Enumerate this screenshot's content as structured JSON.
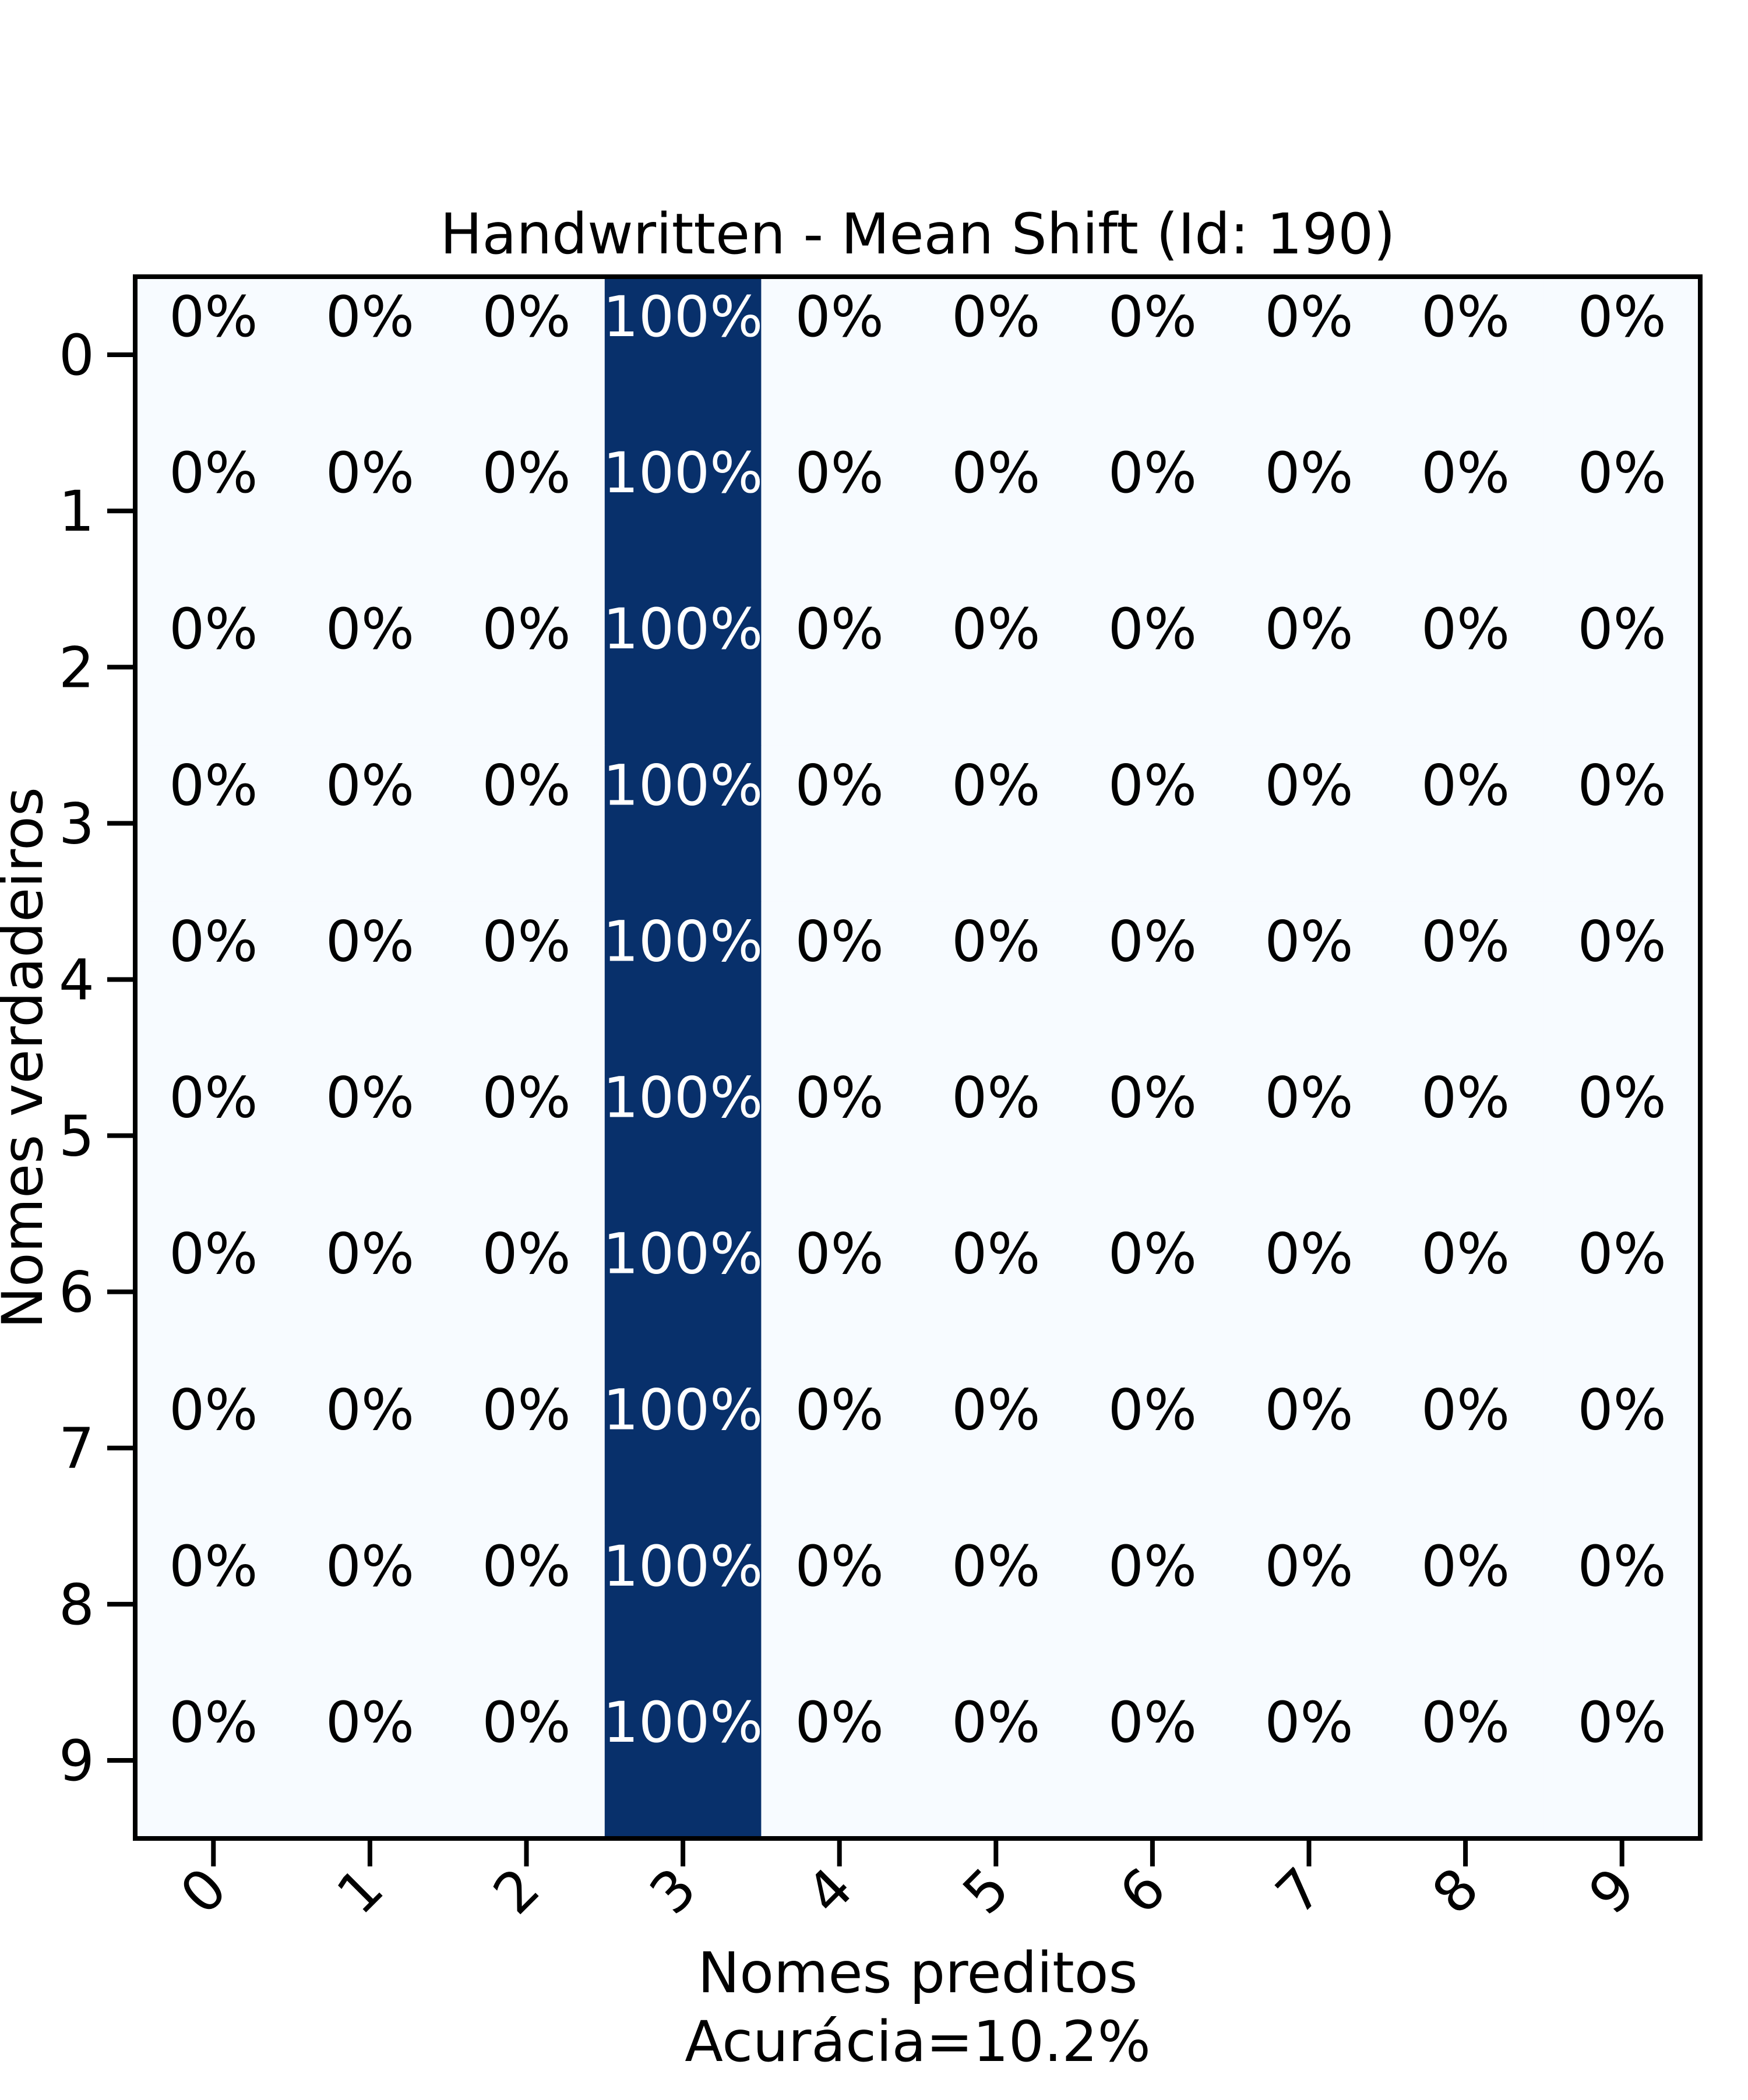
{
  "chart_data": {
    "type": "heatmap",
    "title": "Handwritten - Mean Shift (Id: 190)",
    "xlabel": "Nomes preditos",
    "xlabel_sub": "Acurácia=10.2%",
    "ylabel": "Nomes verdadeiros",
    "x_categories": [
      "0",
      "1",
      "2",
      "3",
      "4",
      "5",
      "6",
      "7",
      "8",
      "9"
    ],
    "y_categories": [
      "0",
      "1",
      "2",
      "3",
      "4",
      "5",
      "6",
      "7",
      "8",
      "9"
    ],
    "values": [
      [
        0,
        0,
        0,
        100,
        0,
        0,
        0,
        0,
        0,
        0
      ],
      [
        0,
        0,
        0,
        100,
        0,
        0,
        0,
        0,
        0,
        0
      ],
      [
        0,
        0,
        0,
        100,
        0,
        0,
        0,
        0,
        0,
        0
      ],
      [
        0,
        0,
        0,
        100,
        0,
        0,
        0,
        0,
        0,
        0
      ],
      [
        0,
        0,
        0,
        100,
        0,
        0,
        0,
        0,
        0,
        0
      ],
      [
        0,
        0,
        0,
        100,
        0,
        0,
        0,
        0,
        0,
        0
      ],
      [
        0,
        0,
        0,
        100,
        0,
        0,
        0,
        0,
        0,
        0
      ],
      [
        0,
        0,
        0,
        100,
        0,
        0,
        0,
        0,
        0,
        0
      ],
      [
        0,
        0,
        0,
        100,
        0,
        0,
        0,
        0,
        0,
        0
      ],
      [
        0,
        0,
        0,
        100,
        0,
        0,
        0,
        0,
        0,
        0
      ]
    ],
    "cell_labels": [
      [
        "0%",
        "0%",
        "0%",
        "100%",
        "0%",
        "0%",
        "0%",
        "0%",
        "0%",
        "0%"
      ],
      [
        "0%",
        "0%",
        "0%",
        "100%",
        "0%",
        "0%",
        "0%",
        "0%",
        "0%",
        "0%"
      ],
      [
        "0%",
        "0%",
        "0%",
        "100%",
        "0%",
        "0%",
        "0%",
        "0%",
        "0%",
        "0%"
      ],
      [
        "0%",
        "0%",
        "0%",
        "100%",
        "0%",
        "0%",
        "0%",
        "0%",
        "0%",
        "0%"
      ],
      [
        "0%",
        "0%",
        "0%",
        "100%",
        "0%",
        "0%",
        "0%",
        "0%",
        "0%",
        "0%"
      ],
      [
        "0%",
        "0%",
        "0%",
        "100%",
        "0%",
        "0%",
        "0%",
        "0%",
        "0%",
        "0%"
      ],
      [
        "0%",
        "0%",
        "0%",
        "100%",
        "0%",
        "0%",
        "0%",
        "0%",
        "0%",
        "0%"
      ],
      [
        "0%",
        "0%",
        "0%",
        "100%",
        "0%",
        "0%",
        "0%",
        "0%",
        "0%",
        "0%"
      ],
      [
        "0%",
        "0%",
        "0%",
        "100%",
        "0%",
        "0%",
        "0%",
        "0%",
        "0%",
        "0%"
      ],
      [
        "0%",
        "0%",
        "0%",
        "100%",
        "0%",
        "0%",
        "0%",
        "0%",
        "0%",
        "0%"
      ]
    ],
    "colormap": {
      "low": "#f7fbff",
      "high": "#08306b"
    },
    "label_colors": {
      "on_light": "#000000",
      "on_dark": "#ffffff"
    },
    "grid": false,
    "legend": "none"
  }
}
